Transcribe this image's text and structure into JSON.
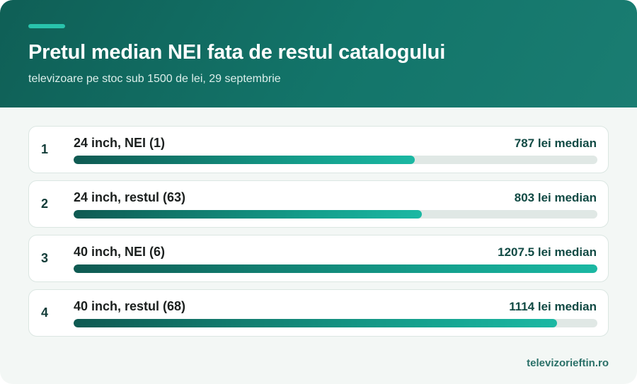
{
  "header": {
    "title": "Pretul median NEI fata de restul catalogului",
    "subtitle": "televizoare pe stoc sub 1500 de lei, 29 septembrie"
  },
  "footer": {
    "source": "televizorieftin.ro"
  },
  "colors": {
    "header_bg": "#13756a",
    "accent": "#29c3ac",
    "bar_start": "#0f5a52",
    "bar_end": "#1bb8a3",
    "track": "#e0e8e5"
  },
  "chart_data": {
    "type": "bar",
    "orientation": "horizontal",
    "categories": [
      "24 inch, NEI (1)",
      "24 inch, restul (63)",
      "40 inch, NEI (6)",
      "40 inch, restul (68)"
    ],
    "ranks": [
      "1",
      "2",
      "3",
      "4"
    ],
    "values": [
      787,
      803,
      1207.5,
      1114
    ],
    "value_labels": [
      "787 lei median",
      "803 lei median",
      "1207.5 lei median",
      "1114 lei median"
    ],
    "xlim": [
      0,
      1207.5
    ]
  }
}
